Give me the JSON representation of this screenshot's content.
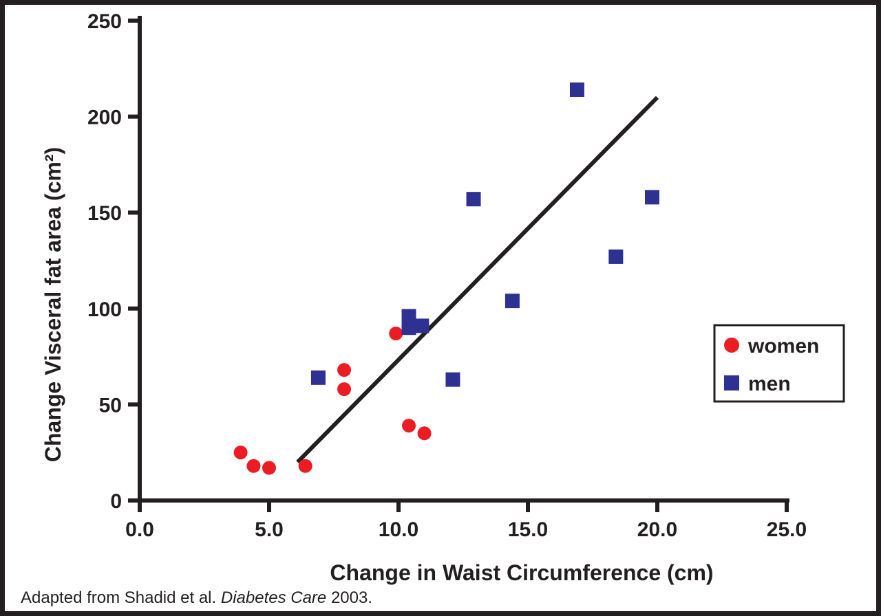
{
  "colors": {
    "women": "#ec1c24",
    "men": "#2e3192",
    "axis": "#231f20",
    "trend": "#231f20",
    "frame": "#231f20",
    "legend_box_fill": "#ffffff"
  },
  "figure": {
    "caption": {
      "prefix": "Adapted from Shadid et al. ",
      "italic": "Diabetes Care",
      "suffix": " 2003."
    }
  },
  "legend": {
    "items": [
      {
        "label": "women",
        "color": "#ec1c24",
        "marker": "circle"
      },
      {
        "label": "men",
        "color": "#2e3192",
        "marker": "square"
      }
    ]
  },
  "chart_data": {
    "type": "scatter",
    "title": "",
    "xlabel": "Change in Waist Circumference (cm)",
    "ylabel": "Change Visceral fat area (cm²)",
    "xlim": [
      0,
      25
    ],
    "ylim": [
      0,
      250
    ],
    "grid": false,
    "legend_position": "right-middle",
    "x_ticks": [
      0,
      5,
      10,
      15,
      20,
      25
    ],
    "x_tick_labels": [
      "0.0",
      "5.0",
      "10.0",
      "15.0",
      "20.0",
      "25.0"
    ],
    "y_ticks": [
      0,
      50,
      100,
      150,
      200,
      250
    ],
    "y_tick_labels": [
      "0",
      "50",
      "100",
      "150",
      "200",
      "250"
    ],
    "series": [
      {
        "name": "women",
        "marker": "circle",
        "color": "#ec1c24",
        "points": [
          [
            3.9,
            25
          ],
          [
            4.4,
            18
          ],
          [
            5.0,
            17
          ],
          [
            6.4,
            18
          ],
          [
            7.9,
            68
          ],
          [
            7.9,
            58
          ],
          [
            9.9,
            87
          ],
          [
            10.4,
            39
          ],
          [
            11.0,
            35
          ]
        ]
      },
      {
        "name": "men",
        "marker": "square",
        "color": "#2e3192",
        "points": [
          [
            6.9,
            64
          ],
          [
            10.4,
            96
          ],
          [
            10.4,
            90
          ],
          [
            10.9,
            91
          ],
          [
            12.1,
            63
          ],
          [
            12.9,
            157
          ],
          [
            14.4,
            104
          ],
          [
            16.9,
            214
          ],
          [
            18.4,
            127
          ],
          [
            19.8,
            158
          ]
        ]
      }
    ],
    "trend_line": {
      "x1": 6.1,
      "y1": 20,
      "x2": 20.0,
      "y2": 210
    }
  }
}
